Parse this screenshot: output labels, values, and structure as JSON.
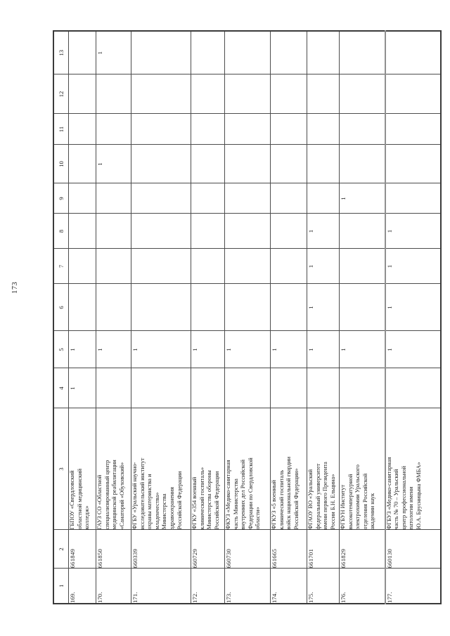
{
  "page_number": "173",
  "table": {
    "headers": [
      "1",
      "2",
      "3",
      "4",
      "5",
      "6",
      "7",
      "8",
      "9",
      "10",
      "11",
      "12",
      "13"
    ],
    "rows": [
      {
        "cells": [
          "169.",
          "661849",
          "ГБПОУ «Свердловский\nобластной медицинский\nколледж»",
          "1",
          "1",
          "",
          "",
          "",
          "",
          "",
          "",
          "",
          ""
        ]
      },
      {
        "cells": [
          "170.",
          "661850",
          "ГАУЗ СО «Областной\nспециализированный центр\nмедицинской реабилитации\n«Санаторий «Обуховский»",
          "",
          "1",
          "",
          "",
          "",
          "",
          "1",
          "",
          "",
          "1"
        ]
      },
      {
        "cells": [
          "171.",
          "660339",
          "ФГБУ «Уральский научно-\nисследовательский институт\nохраны материнства и\nмладенчества»\nМинистерства\nздравоохранения\nРоссийской Федерации",
          "",
          "1",
          "",
          "",
          "",
          "",
          "",
          "",
          "",
          ""
        ]
      },
      {
        "cells": [
          "172.",
          "660729",
          "ФГКУ «354 военный\nклинический госпиталь»\nМинистерства обороны\nРоссийской Федерации",
          "",
          "1",
          "",
          "",
          "",
          "",
          "",
          "",
          "",
          ""
        ]
      },
      {
        "cells": [
          "173.",
          "660730",
          "ФКУЗ «Медико-санитарная\nчасть Министерства\nвнутренних дел Российской\nФедерации по Свердловской\nобласти»",
          "",
          "1",
          "",
          "",
          "",
          "",
          "",
          "",
          "",
          ""
        ]
      },
      {
        "cells": [
          "174.",
          "661665",
          "ФГКУЗ «5 военный\nклинический госпиталь\nвойск национальной гвардии\nРоссийской Федерации»",
          "",
          "1",
          "",
          "",
          "",
          "",
          "",
          "",
          "",
          ""
        ]
      },
      {
        "cells": [
          "175.",
          "661701",
          "ФГАОУ ВО «Уральский\nфедеральный университет\nимени первого Президента\nРоссии Б.Н. Ельцина»",
          "",
          "1",
          "1",
          "1",
          "1",
          "",
          "",
          "",
          "",
          ""
        ]
      },
      {
        "cells": [
          "176.",
          "661829",
          "ФГБУН Институт\nвысокотемпературной\nэлектрохимии Уральского\nотделения Российской\nакадемии наук",
          "",
          "1",
          "",
          "",
          "",
          "1",
          "",
          "",
          "",
          ""
        ]
      },
      {
        "cells": [
          "177.",
          "660130",
          "ФГБУЗ «Медико-санитарная\nчасть № 70 – Уральский\nцентр профессиональной\nпатологии имени\nЮ.А. Брусницына ФМБА»",
          "",
          "1",
          "1",
          "1",
          "1",
          "",
          "",
          "",
          "",
          ""
        ]
      }
    ]
  }
}
